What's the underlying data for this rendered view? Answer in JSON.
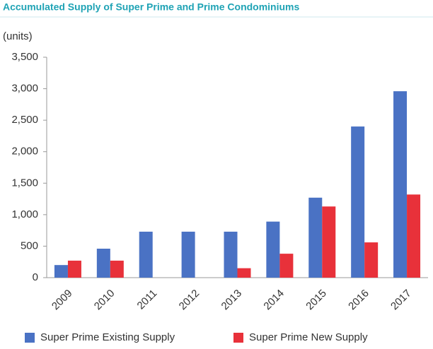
{
  "chart_data": {
    "type": "bar",
    "title": "Accumulated Supply of Super Prime and Prime Condominiums",
    "y_label": "(units)",
    "categories": [
      "2009",
      "2010",
      "2011",
      "2012",
      "2013",
      "2014",
      "2015",
      "2016",
      "2017"
    ],
    "series": [
      {
        "name": "Super Prime Existing Supply",
        "color": "#4a72c4",
        "values": [
          200,
          460,
          730,
          730,
          730,
          890,
          1270,
          2400,
          2960
        ]
      },
      {
        "name": "Super Prime New Supply",
        "color": "#e8313a",
        "values": [
          270,
          270,
          0,
          0,
          150,
          380,
          1130,
          560,
          1320
        ]
      }
    ],
    "ylim": [
      0,
      3500
    ],
    "yticks": [
      0,
      500,
      {
        "value": 1000,
        "label": "1,000"
      },
      {
        "value": 1500,
        "label": "1,500"
      },
      {
        "value": 2000,
        "label": "2,000"
      },
      {
        "value": 2500,
        "label": "2,500"
      },
      {
        "value": 3000,
        "label": "3,000"
      },
      {
        "value": 3500,
        "label": "3,500"
      }
    ],
    "grid": false,
    "legend": "bottom"
  }
}
